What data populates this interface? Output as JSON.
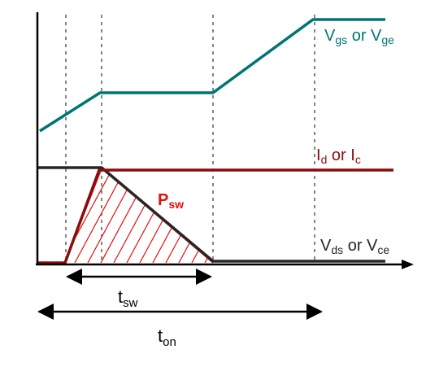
{
  "colors": {
    "gate": "#007474",
    "current": "#8c0c0c",
    "voltage": "#262626",
    "power": "#e01010",
    "axis": "#000000",
    "guide": "#333333"
  },
  "labels": {
    "gate_signal": {
      "main": "V",
      "sub1": "gs",
      "mid": " or V",
      "sub2": "ge"
    },
    "current": {
      "main": "I",
      "sub1": "d",
      "mid": " or I",
      "sub2": "c"
    },
    "voltage": {
      "main": "V",
      "sub1": "ds",
      "mid": " or V",
      "sub2": "ce"
    },
    "power": {
      "main": "P",
      "sub": "sw"
    },
    "switching_time": {
      "main": "t",
      "sub": "sw"
    },
    "turn_on_time": {
      "main": "t",
      "sub": "on"
    }
  }
}
